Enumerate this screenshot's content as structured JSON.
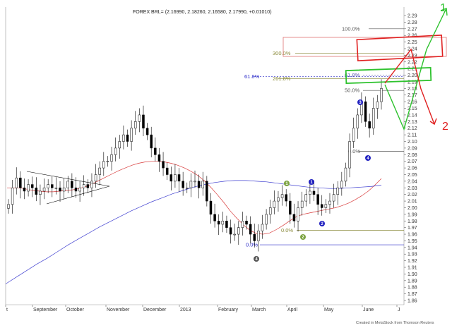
{
  "chart_data": {
    "type": "candlestick",
    "header": "FOREX BRL= (2.16990, 2.18260, 2.16580, 2.17990, +0.01010)",
    "credit": "Created in MetaStock from Thomson Reuters",
    "y_axis": {
      "min": 1.855,
      "max": 2.3,
      "side": "right",
      "ticks": [
        1.86,
        1.87,
        1.88,
        1.89,
        1.9,
        1.91,
        1.92,
        1.93,
        1.94,
        1.95,
        1.96,
        1.97,
        1.98,
        1.99,
        2.0,
        2.01,
        2.02,
        2.03,
        2.04,
        2.05,
        2.06,
        2.07,
        2.08,
        2.09,
        2.1,
        2.11,
        2.12,
        2.13,
        2.14,
        2.15,
        2.16,
        2.17,
        2.18,
        2.19,
        2.2,
        2.21,
        2.22,
        2.23,
        2.24,
        2.25,
        2.26,
        2.27,
        2.28,
        2.29
      ],
      "tick_labels": [
        "1.86",
        "1.87",
        "1.88",
        "1.89",
        "1.90",
        "1.91",
        "1.92",
        "1.93",
        "1.94",
        "1.95",
        "1.96",
        "1.97",
        "1.98",
        "1.99",
        "2.00",
        "2.01",
        "2.02",
        "2.03",
        "2.04",
        "2.05",
        "2.06",
        "2.07",
        "2.08",
        "2.09",
        "2.10",
        "2.11",
        "2.12",
        "2.13",
        "2.14",
        "2.15",
        "2.16",
        "2.17",
        "2.18",
        "2.19",
        "2.20",
        "2.21",
        "2.22",
        "2.23",
        "2.24",
        "2.25",
        "2.26",
        "2.27",
        "2.28",
        "2.29"
      ]
    },
    "x_axis": {
      "labels": [
        "t",
        "September",
        "October",
        "November",
        "December",
        "2013",
        "February",
        "March",
        "April",
        "May",
        "June",
        "J"
      ]
    },
    "series": [
      {
        "name": "price",
        "style": "candlestick",
        "color": "#000000",
        "close": [
          2.005,
          2.03,
          2.045,
          2.03,
          2.025,
          2.035,
          2.03,
          2.02,
          2.025,
          2.03,
          2.035,
          2.03,
          2.03,
          2.025,
          2.03,
          2.04,
          2.03,
          2.025,
          2.03,
          2.035,
          2.03,
          2.04,
          2.05,
          2.06,
          2.07,
          2.07,
          2.08,
          2.09,
          2.1,
          2.11,
          2.1,
          2.12,
          2.13,
          2.14,
          2.12,
          2.11,
          2.09,
          2.08,
          2.07,
          2.06,
          2.05,
          2.04,
          2.05,
          2.04,
          2.03,
          2.03,
          2.04,
          2.04,
          2.03,
          2.04,
          2.01,
          1.99,
          1.98,
          1.975,
          1.98,
          1.97,
          1.96,
          1.96,
          1.97,
          1.98,
          1.975,
          1.96,
          1.95,
          1.965,
          1.975,
          1.99,
          2.0,
          2.01,
          2.015,
          2.02,
          2.01,
          1.99,
          1.98,
          2.0,
          2.01,
          2.02,
          2.025,
          2.02,
          2.005,
          2.0,
          2.005,
          2.01,
          2.02,
          2.03,
          2.04,
          2.06,
          2.1,
          2.12,
          2.14,
          2.16,
          2.13,
          2.12,
          2.15,
          2.16,
          2.18
        ]
      },
      {
        "name": "ma-short",
        "style": "line",
        "color": "#d83a3a",
        "values": [
          2.03,
          2.03,
          2.03,
          2.028,
          2.026,
          2.025,
          2.024,
          2.024,
          2.025,
          2.026,
          2.027,
          2.029,
          2.032,
          2.036,
          2.041,
          2.046,
          2.051,
          2.056,
          2.06,
          2.064,
          2.067,
          2.069,
          2.07,
          2.07,
          2.069,
          2.067,
          2.064,
          2.06,
          2.055,
          2.049,
          2.041,
          2.031,
          2.02,
          2.008,
          1.995,
          1.984,
          1.974,
          1.966,
          1.961,
          1.96,
          1.962,
          1.967,
          1.973,
          1.98,
          1.986,
          1.99,
          1.992,
          1.994,
          1.996,
          1.998,
          2.0,
          2.003,
          2.007,
          2.012,
          2.018,
          2.025,
          2.034,
          2.044
        ]
      },
      {
        "name": "ma-long",
        "style": "line",
        "color": "#3f3fd0",
        "values": [
          1.885,
          1.895,
          1.905,
          1.915,
          1.924,
          1.934,
          1.944,
          1.953,
          1.962,
          1.971,
          1.979,
          1.987,
          1.995,
          2.002,
          2.009,
          2.015,
          2.021,
          2.026,
          2.031,
          2.035,
          2.038,
          2.04,
          2.041,
          2.041,
          2.04,
          2.039,
          2.037,
          2.035,
          2.033,
          2.031,
          2.03,
          2.029,
          2.029,
          2.03,
          2.031,
          2.032,
          2.034
        ]
      }
    ],
    "fib_levels": [
      {
        "label": "100.0%",
        "value": 2.27,
        "color": "#555555"
      },
      {
        "label": "300.0%",
        "value": 2.233,
        "color": "#8a8a3a"
      },
      {
        "label": "61.8%",
        "value": 2.2,
        "color": "#5555aa"
      },
      {
        "label": "261.8%",
        "value": 2.195,
        "color": "#8a8a3a"
      },
      {
        "label": "61.8%",
        "value": 2.198,
        "color": "#2a2ac8"
      },
      {
        "label": "50.0%",
        "value": 2.177,
        "color": "#555555"
      },
      {
        "label": "0.0%",
        "value": 2.085,
        "color": "#555555"
      },
      {
        "label": "0.0%",
        "value": 1.966,
        "color": "#8a8a3a"
      },
      {
        "label": "0.0%",
        "value": 1.944,
        "color": "#2a2ac8"
      }
    ],
    "wave_labels": [
      {
        "label": "1",
        "color": "#7ba23f"
      },
      {
        "label": "2",
        "color": "#7ba23f"
      },
      {
        "label": "1",
        "color": "#2020c0"
      },
      {
        "label": "2",
        "color": "#2020c0"
      },
      {
        "label": "3",
        "color": "#2020c0"
      },
      {
        "label": "4",
        "color": "#2020c0"
      },
      {
        "label": "4",
        "color": "#555555"
      }
    ],
    "annotations": [
      {
        "label": "1",
        "color": "#2ec22e"
      },
      {
        "label": "2",
        "color": "#e02020"
      }
    ]
  }
}
